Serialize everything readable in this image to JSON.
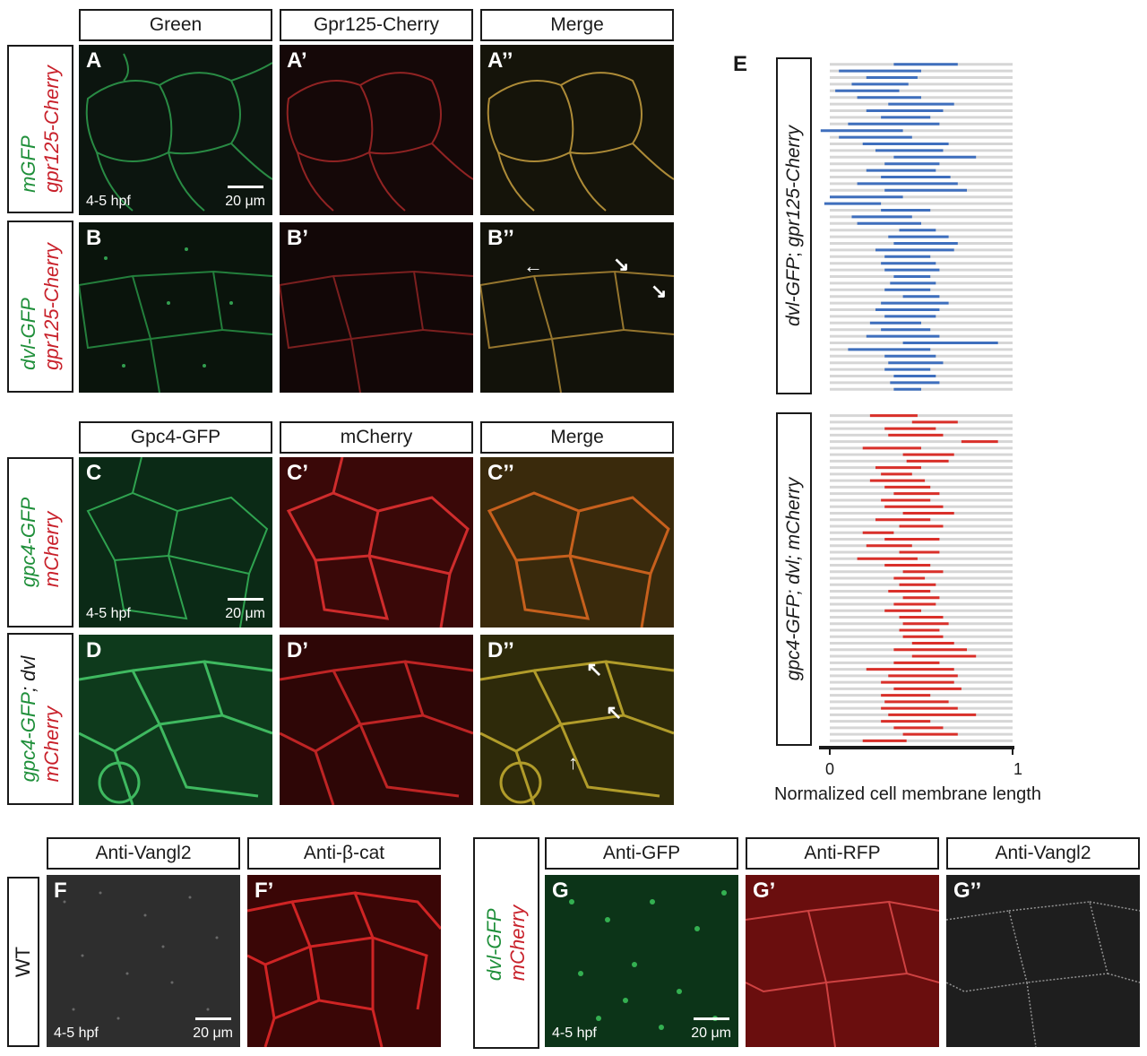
{
  "row1": {
    "headers": [
      "Green",
      "Gpr125-Cherry",
      "Merge"
    ],
    "panelA": {
      "labels": [
        "A",
        "A’",
        "A’’"
      ],
      "side_green": "mGFP",
      "side_red": "gpr125-Cherry",
      "time": "4-5 hpf",
      "scale": "20 μm"
    },
    "panelB": {
      "labels": [
        "B",
        "B’",
        "B’’"
      ],
      "side_green": "dvl-GFP",
      "side_red": "gpr125-Cherry"
    }
  },
  "row2": {
    "headers": [
      "Gpc4-GFP",
      "mCherry",
      "Merge"
    ],
    "panelC": {
      "labels": [
        "C",
        "C’",
        "C’’"
      ],
      "side_green": "gpc4-GFP",
      "side_red": "mCherry",
      "time": "4-5 hpf",
      "scale": "20 μm"
    },
    "panelD": {
      "labels": [
        "D",
        "D’",
        "D’’"
      ],
      "side_green": "gpc4-GFP",
      "side_sep": ";",
      "side_black": " dvl",
      "side_red": "mCherry"
    }
  },
  "row3": {
    "headers_left": [
      "Anti-Vangl2",
      "Anti-β-cat"
    ],
    "labels_left": [
      "F",
      "F’"
    ],
    "side_left": "WT",
    "time_left": "4-5 hpf",
    "scale_left": "20 μm",
    "headers_right": [
      "Anti-GFP",
      "Anti-RFP",
      "Anti-Vangl2"
    ],
    "labels_right": [
      "G",
      "G’",
      "G’’"
    ],
    "side_right_green": "dvl-GFP",
    "side_right_red": "mCherry",
    "time_right": "4-5 hpf",
    "scale_right": "20 μm"
  },
  "chart_data": {
    "type": "range-bar",
    "panel_label": "E",
    "xlabel": "Normalized cell membrane length",
    "xlim": [
      0,
      1
    ],
    "xticks": [
      "0",
      "1"
    ],
    "groups": [
      {
        "name": "dvl-GFP; gpr125-Cherry",
        "name_part1": "dvl-GFP",
        "name_part2": "; ",
        "name_part3": "gpr125-Cherry",
        "color": "#3f6fbd",
        "segments": [
          [
            0.35,
            0.7
          ],
          [
            0.05,
            0.5
          ],
          [
            0.2,
            0.48
          ],
          [
            0.12,
            0.43
          ],
          [
            0.03,
            0.38
          ],
          [
            0.15,
            0.5
          ],
          [
            0.32,
            0.68
          ],
          [
            0.2,
            0.62
          ],
          [
            0.28,
            0.55
          ],
          [
            0.1,
            0.6
          ],
          [
            -0.05,
            0.4
          ],
          [
            0.05,
            0.45
          ],
          [
            0.18,
            0.65
          ],
          [
            0.25,
            0.62
          ],
          [
            0.35,
            0.8
          ],
          [
            0.3,
            0.6
          ],
          [
            0.2,
            0.58
          ],
          [
            0.28,
            0.66
          ],
          [
            0.15,
            0.7
          ],
          [
            0.3,
            0.75
          ],
          [
            0.0,
            0.4
          ],
          [
            -0.03,
            0.28
          ],
          [
            0.28,
            0.55
          ],
          [
            0.12,
            0.45
          ],
          [
            0.15,
            0.5
          ],
          [
            0.38,
            0.58
          ],
          [
            0.32,
            0.65
          ],
          [
            0.35,
            0.7
          ],
          [
            0.25,
            0.68
          ],
          [
            0.3,
            0.55
          ],
          [
            0.28,
            0.58
          ],
          [
            0.3,
            0.6
          ],
          [
            0.35,
            0.55
          ],
          [
            0.33,
            0.58
          ],
          [
            0.3,
            0.55
          ],
          [
            0.4,
            0.6
          ],
          [
            0.28,
            0.65
          ],
          [
            0.25,
            0.6
          ],
          [
            0.3,
            0.58
          ],
          [
            0.22,
            0.5
          ],
          [
            0.28,
            0.55
          ],
          [
            0.2,
            0.6
          ],
          [
            0.4,
            0.92
          ],
          [
            0.1,
            0.55
          ],
          [
            0.3,
            0.58
          ],
          [
            0.32,
            0.62
          ],
          [
            0.3,
            0.55
          ],
          [
            0.35,
            0.58
          ],
          [
            0.33,
            0.6
          ],
          [
            0.35,
            0.5
          ]
        ]
      },
      {
        "name": "gpc4-GFP; dvl; mCherry",
        "name_part1": "gpc4-GFP",
        "name_part2": "; dvl; ",
        "name_part3": "mCherry",
        "color": "#d9302a",
        "segments": [
          [
            0.22,
            0.48
          ],
          [
            0.45,
            0.7
          ],
          [
            0.3,
            0.58
          ],
          [
            0.32,
            0.62
          ],
          [
            0.72,
            0.92
          ],
          [
            0.18,
            0.5
          ],
          [
            0.4,
            0.68
          ],
          [
            0.42,
            0.65
          ],
          [
            0.25,
            0.5
          ],
          [
            0.28,
            0.45
          ],
          [
            0.22,
            0.52
          ],
          [
            0.3,
            0.55
          ],
          [
            0.35,
            0.6
          ],
          [
            0.28,
            0.55
          ],
          [
            0.3,
            0.62
          ],
          [
            0.4,
            0.68
          ],
          [
            0.25,
            0.55
          ],
          [
            0.38,
            0.62
          ],
          [
            0.18,
            0.35
          ],
          [
            0.3,
            0.6
          ],
          [
            0.2,
            0.45
          ],
          [
            0.38,
            0.6
          ],
          [
            0.15,
            0.48
          ],
          [
            0.3,
            0.55
          ],
          [
            0.4,
            0.62
          ],
          [
            0.35,
            0.52
          ],
          [
            0.38,
            0.58
          ],
          [
            0.32,
            0.55
          ],
          [
            0.4,
            0.6
          ],
          [
            0.35,
            0.58
          ],
          [
            0.3,
            0.5
          ],
          [
            0.38,
            0.62
          ],
          [
            0.4,
            0.65
          ],
          [
            0.38,
            0.6
          ],
          [
            0.4,
            0.62
          ],
          [
            0.45,
            0.68
          ],
          [
            0.35,
            0.75
          ],
          [
            0.45,
            0.8
          ],
          [
            0.35,
            0.6
          ],
          [
            0.2,
            0.68
          ],
          [
            0.32,
            0.7
          ],
          [
            0.28,
            0.68
          ],
          [
            0.35,
            0.72
          ],
          [
            0.28,
            0.55
          ],
          [
            0.3,
            0.65
          ],
          [
            0.28,
            0.7
          ],
          [
            0.32,
            0.8
          ],
          [
            0.28,
            0.55
          ],
          [
            0.35,
            0.62
          ],
          [
            0.4,
            0.7
          ],
          [
            0.18,
            0.42
          ]
        ]
      }
    ]
  }
}
